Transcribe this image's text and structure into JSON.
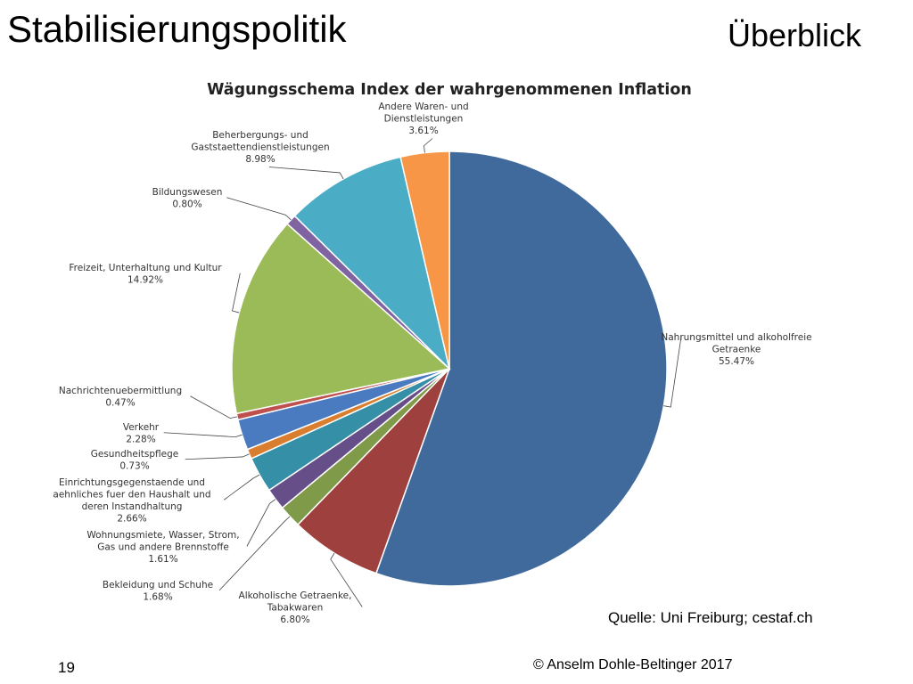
{
  "slide": {
    "title": "Stabilisierungspolitik",
    "subtitle": "Überblick",
    "source": "Quelle: Uni Freiburg; cestaf.ch",
    "page_number": "19",
    "copyright": "© Anselm Dohle-Beltinger 2017"
  },
  "chart_data": {
    "type": "pie",
    "title": "Wägungsschema Index der wahrgenommenen Inflation",
    "start_angle_deg": 0,
    "direction": "clockwise",
    "slices": [
      {
        "label_lines": [
          "Nahrungsmittel und alkoholfreie",
          "Getraenke"
        ],
        "value_text": "55.47%",
        "value": 55.47,
        "color": "#406A9C"
      },
      {
        "label_lines": [
          "Alkoholische Getraenke,",
          "Tabakwaren"
        ],
        "value_text": "6.80%",
        "value": 6.8,
        "color": "#9E413E"
      },
      {
        "label_lines": [
          "Bekleidung und Schuhe"
        ],
        "value_text": "1.68%",
        "value": 1.68,
        "color": "#7F9A48"
      },
      {
        "label_lines": [
          "Wohnungsmiete, Wasser, Strom,",
          "Gas und andere Brennstoffe"
        ],
        "value_text": "1.61%",
        "value": 1.61,
        "color": "#664F88"
      },
      {
        "label_lines": [
          "Einrichtungsgegenstaende und",
          "aehnliches fuer den Haushalt und",
          "deren Instandhaltung"
        ],
        "value_text": "2.66%",
        "value": 2.66,
        "color": "#358FA6"
      },
      {
        "label_lines": [
          "Gesundheitspflege"
        ],
        "value_text": "0.73%",
        "value": 0.73,
        "color": "#D97E2F"
      },
      {
        "label_lines": [
          "Verkehr"
        ],
        "value_text": "2.28%",
        "value": 2.28,
        "color": "#4A7BC1"
      },
      {
        "label_lines": [
          "Nachrichtenuebermittlung"
        ],
        "value_text": "0.47%",
        "value": 0.47,
        "color": "#C0504D"
      },
      {
        "label_lines": [
          "Freizeit, Unterhaltung und Kultur"
        ],
        "value_text": "14.92%",
        "value": 14.92,
        "color": "#9BBB59"
      },
      {
        "label_lines": [
          "Bildungswesen"
        ],
        "value_text": "0.80%",
        "value": 0.8,
        "color": "#8064A2"
      },
      {
        "label_lines": [
          "Beherbergungs- und",
          "Gaststaettendienstleistungen"
        ],
        "value_text": "8.98%",
        "value": 8.98,
        "color": "#4BACC6"
      },
      {
        "label_lines": [
          "Andere Waren- und",
          "Dienstleistungen"
        ],
        "value_text": "3.61%",
        "value": 3.61,
        "color": "#F79646"
      }
    ]
  }
}
